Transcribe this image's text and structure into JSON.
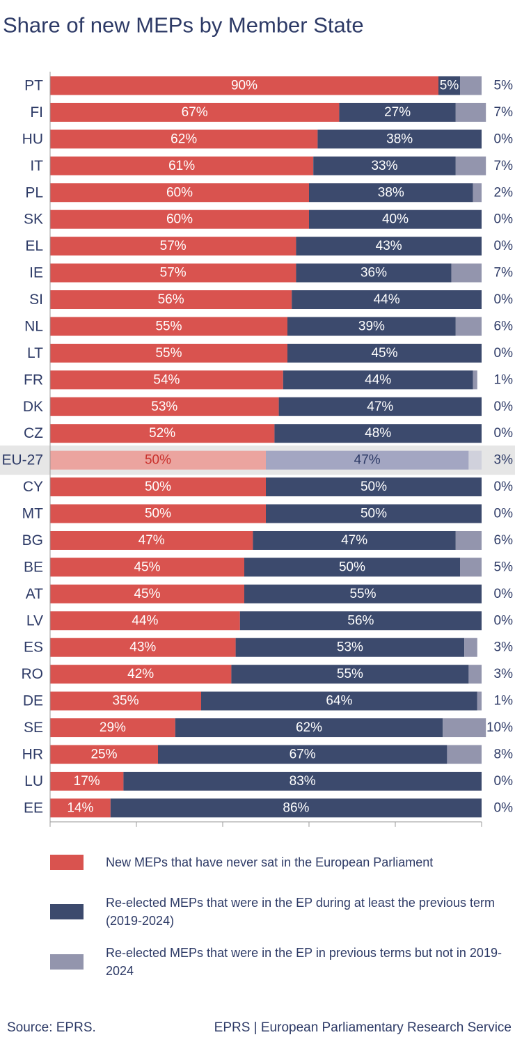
{
  "chart_data": {
    "type": "stacked-barh",
    "title": "Share of new MEPs by Member State",
    "categories": [
      "PT",
      "FI",
      "HU",
      "IT",
      "PL",
      "SK",
      "EL",
      "IE",
      "SI",
      "NL",
      "LT",
      "FR",
      "DK",
      "CZ",
      "EU-27",
      "CY",
      "MT",
      "BG",
      "BE",
      "AT",
      "LV",
      "ES",
      "RO",
      "DE",
      "SE",
      "HR",
      "LU",
      "EE"
    ],
    "series": [
      {
        "name": "New MEPs that have never sat in the European Parliament",
        "color": "#d9534f",
        "highlight_color": "#eba49f",
        "highlight_text_color": "#c9302c",
        "values": [
          90,
          67,
          62,
          61,
          60,
          60,
          57,
          57,
          56,
          55,
          55,
          54,
          53,
          52,
          50,
          50,
          50,
          47,
          45,
          45,
          44,
          43,
          42,
          35,
          29,
          25,
          17,
          14
        ],
        "value_labels": [
          "90%",
          "67%",
          "62%",
          "61%",
          "60%",
          "60%",
          "57%",
          "57%",
          "56%",
          "55%",
          "55%",
          "54%",
          "53%",
          "52%",
          "50%",
          "50%",
          "50%",
          "47%",
          "45%",
          "45%",
          "44%",
          "43%",
          "42%",
          "35%",
          "29%",
          "25%",
          "17%",
          "14%"
        ]
      },
      {
        "name": "Re-elected MEPs that were in the EP during at least the previous term (2019-2024)",
        "color": "#3c4a6d",
        "highlight_color": "#a3a6c2",
        "highlight_text_color": "#2d3a66",
        "values": [
          5,
          27,
          38,
          33,
          38,
          40,
          43,
          36,
          44,
          39,
          45,
          44,
          47,
          48,
          47,
          50,
          50,
          47,
          50,
          55,
          56,
          53,
          55,
          64,
          62,
          67,
          83,
          86
        ],
        "value_labels": [
          "5%",
          "27%",
          "38%",
          "33%",
          "38%",
          "40%",
          "43%",
          "36%",
          "44%",
          "39%",
          "45%",
          "44%",
          "47%",
          "48%",
          "47%",
          "50%",
          "50%",
          "47%",
          "50%",
          "55%",
          "56%",
          "53%",
          "55%",
          "64%",
          "62%",
          "67%",
          "83%",
          "86%"
        ]
      },
      {
        "name": "Re-elected MEPs that were in the EP in previous terms but not in 2019-2024",
        "color": "#9395ad",
        "highlight_color": "#d0d1dc",
        "highlight_text_color": "#2d3a66",
        "labels_outside": true,
        "values": [
          5,
          7,
          0,
          7,
          2,
          0,
          0,
          7,
          0,
          6,
          0,
          1,
          0,
          0,
          3,
          0,
          0,
          6,
          5,
          0,
          0,
          3,
          3,
          1,
          10,
          8,
          0,
          0
        ],
        "value_labels": [
          "5%",
          "7%",
          "0%",
          "7%",
          "2%",
          "0%",
          "0%",
          "7%",
          "0%",
          "6%",
          "0%",
          "1%",
          "0%",
          "0%",
          "3%",
          "0%",
          "0%",
          "6%",
          "5%",
          "0%",
          "0%",
          "3%",
          "3%",
          "1%",
          "10%",
          "8%",
          "0%",
          "0%"
        ]
      }
    ],
    "highlight": "EU-27",
    "xlim": [
      0,
      100
    ],
    "xticks": [
      0,
      20,
      40,
      60,
      80,
      100
    ],
    "source": "Source: EPRS.",
    "publisher": "EPRS | European Parliamentary Research Service"
  }
}
